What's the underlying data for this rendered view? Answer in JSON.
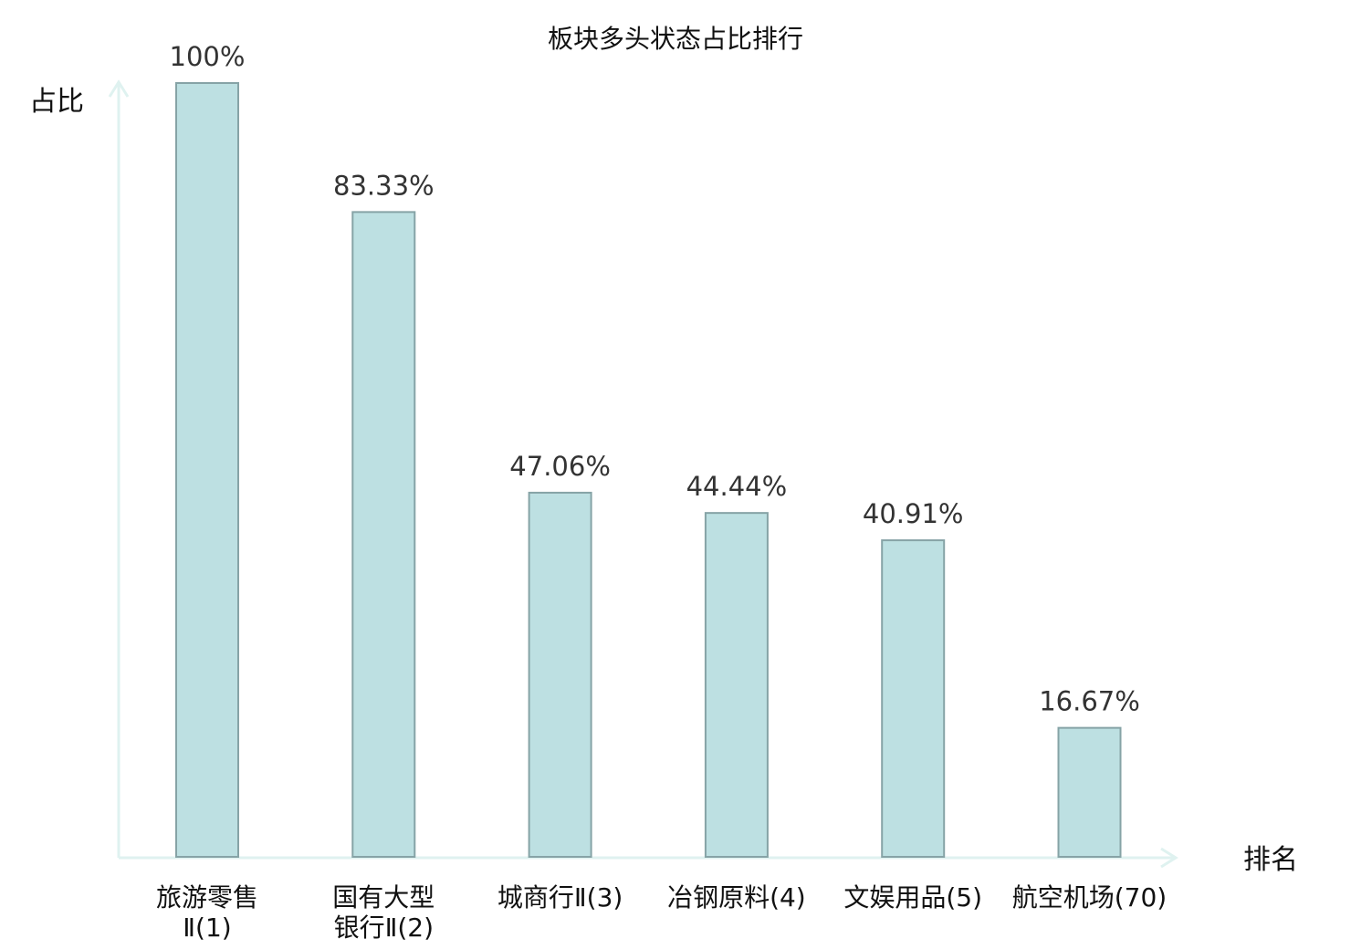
{
  "colors": {
    "bar_fill": "#bde0e2",
    "bar_stroke": "#86a3a6",
    "axis": "#dff2f0",
    "highlight": "#e8141b"
  },
  "chart_data": {
    "type": "bar",
    "title": "板块多头状态占比排行",
    "xlabel": "排名",
    "ylabel": "占比",
    "ylim": [
      0,
      100
    ],
    "grid": false,
    "categories": [
      {
        "lines": [
          "旅游零售",
          "Ⅱ(1)"
        ],
        "highlight": false
      },
      {
        "lines": [
          "国有大型",
          "银行Ⅱ(2)"
        ],
        "highlight": false
      },
      {
        "lines": [
          "城商行Ⅱ(3)"
        ],
        "highlight": false
      },
      {
        "lines": [
          "冶钢原料(4)"
        ],
        "highlight": false
      },
      {
        "lines": [
          "文娱用品(5)"
        ],
        "highlight": false
      },
      {
        "lines": [
          "航空机场(70)"
        ],
        "highlight": true
      }
    ],
    "values": [
      100,
      83.33,
      47.06,
      44.44,
      40.91,
      16.67
    ],
    "value_labels": [
      "100%",
      "83.33%",
      "47.06%",
      "44.44%",
      "40.91%",
      "16.67%"
    ]
  }
}
